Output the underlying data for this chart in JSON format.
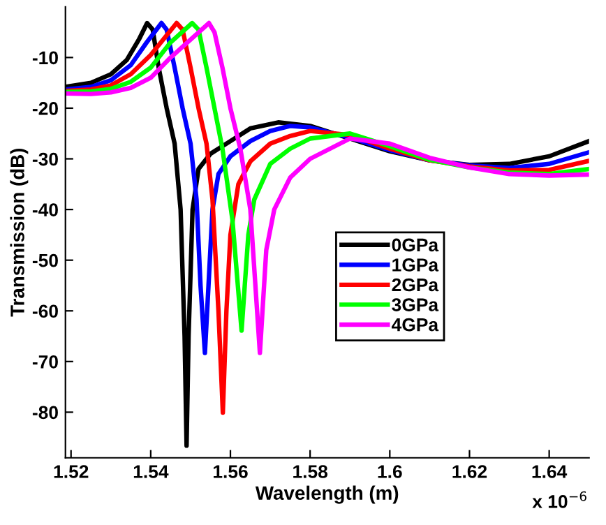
{
  "chart_data": {
    "type": "line",
    "xlabel": "Wavelength (m)",
    "ylabel": "Transmission (dB)",
    "xlim": [
      1.5186,
      1.65
    ],
    "xticks": [
      1.52,
      1.54,
      1.56,
      1.58,
      {
        "value": 1.6,
        "label": "1.6"
      },
      1.62,
      1.64
    ],
    "ylim": [
      -89,
      0
    ],
    "yticks": [
      -80,
      -70,
      -60,
      -50,
      -40,
      -30,
      -20,
      -10
    ],
    "annotations": [
      "x 10$^{−6}$"
    ],
    "legend": "center right",
    "grid": false,
    "marker": "none",
    "line_style": "solid",
    "series": [
      {
        "name": "0GPa",
        "color": "#000000",
        "x": [
          1.5186,
          1.525,
          1.53,
          1.534,
          1.537,
          1.5391,
          1.5405,
          1.542,
          1.544,
          1.546,
          1.5475,
          1.5485,
          1.549,
          1.5495,
          1.5505,
          1.552,
          1.555,
          1.56,
          1.565,
          1.572,
          1.58,
          1.59,
          1.6,
          1.61,
          1.62,
          1.63,
          1.64,
          1.65
        ],
        "values": [
          -15.8,
          -15.0,
          -13.3,
          -10.5,
          -6.5,
          -3.2,
          -4.5,
          -12,
          -20,
          -27,
          -40,
          -65,
          -86.6,
          -65,
          -40,
          -32,
          -29,
          -26.5,
          -24,
          -22.8,
          -23.5,
          -26,
          -28.5,
          -30.3,
          -31.2,
          -31,
          -29.5,
          -26.5
        ]
      },
      {
        "name": "1GPa",
        "color": "#0000ff",
        "x": [
          1.5186,
          1.525,
          1.53,
          1.535,
          1.539,
          1.5427,
          1.544,
          1.546,
          1.548,
          1.55,
          1.5515,
          1.5525,
          1.5536,
          1.5545,
          1.5555,
          1.557,
          1.56,
          1.565,
          1.57,
          1.575,
          1.58,
          1.59,
          1.6,
          1.61,
          1.62,
          1.63,
          1.64,
          1.65
        ],
        "values": [
          -16.3,
          -15.8,
          -14.5,
          -11.5,
          -7,
          -3.2,
          -4.5,
          -12,
          -20,
          -27,
          -38,
          -55,
          -68.3,
          -55,
          -40,
          -33,
          -29.5,
          -26.5,
          -24.5,
          -23.5,
          -23.8,
          -25.8,
          -28.3,
          -30.3,
          -31.3,
          -31.8,
          -31,
          -28.7
        ]
      },
      {
        "name": "2GPa",
        "color": "#ff0000",
        "x": [
          1.5186,
          1.525,
          1.53,
          1.535,
          1.54,
          1.5465,
          1.548,
          1.55,
          1.552,
          1.554,
          1.5555,
          1.557,
          1.5581,
          1.559,
          1.56,
          1.562,
          1.565,
          1.57,
          1.575,
          1.58,
          1.59,
          1.6,
          1.61,
          1.62,
          1.63,
          1.64,
          1.65
        ],
        "values": [
          -16.6,
          -16.3,
          -15.5,
          -13.3,
          -9.5,
          -3.2,
          -4.5,
          -12,
          -20,
          -27,
          -38,
          -60,
          -80.1,
          -60,
          -45,
          -35,
          -30.5,
          -27,
          -25.5,
          -24.5,
          -25.3,
          -28,
          -30.3,
          -31.5,
          -32.3,
          -32.2,
          -30.4
        ]
      },
      {
        "name": "3GPa",
        "color": "#00ff00",
        "x": [
          1.5186,
          1.525,
          1.53,
          1.535,
          1.54,
          1.545,
          1.5504,
          1.552,
          1.554,
          1.556,
          1.558,
          1.5605,
          1.5628,
          1.5645,
          1.566,
          1.57,
          1.575,
          1.58,
          1.59,
          1.6,
          1.61,
          1.62,
          1.63,
          1.64,
          1.65
        ],
        "values": [
          -16.8,
          -16.7,
          -16.2,
          -14.8,
          -12,
          -7,
          -3.2,
          -4.5,
          -12,
          -20,
          -28,
          -42,
          -63.9,
          -45,
          -38,
          -31,
          -28,
          -26,
          -25,
          -27.5,
          -30.2,
          -31.7,
          -32.7,
          -33,
          -32
        ]
      },
      {
        "name": "4GPa",
        "color": "#ff00ff",
        "x": [
          1.5186,
          1.525,
          1.53,
          1.535,
          1.54,
          1.545,
          1.5546,
          1.556,
          1.558,
          1.56,
          1.5625,
          1.565,
          1.5674,
          1.569,
          1.571,
          1.575,
          1.58,
          1.59,
          1.6,
          1.61,
          1.62,
          1.63,
          1.64,
          1.65
        ],
        "values": [
          -17.1,
          -17.2,
          -16.9,
          -16,
          -14,
          -10,
          -3.2,
          -5,
          -12,
          -20,
          -28,
          -40,
          -68.3,
          -48,
          -40,
          -33.7,
          -30,
          -26,
          -27,
          -29.8,
          -31.7,
          -33,
          -33.3,
          -33.1
        ]
      }
    ]
  }
}
